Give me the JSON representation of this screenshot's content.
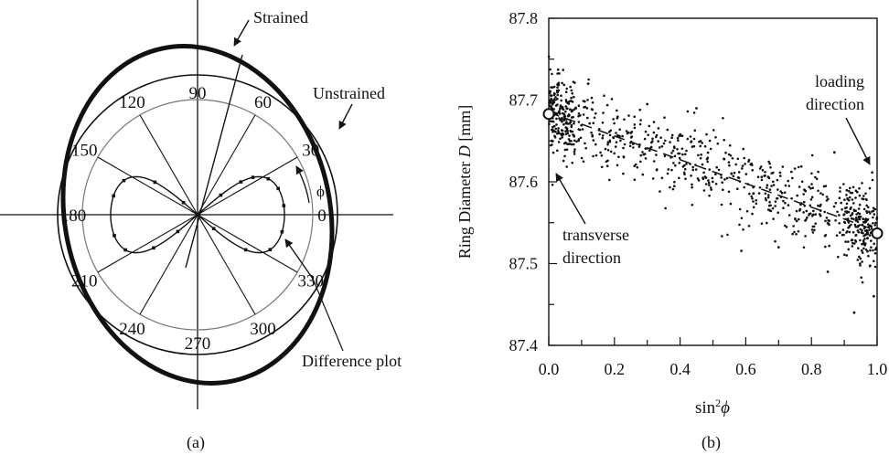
{
  "panel_a": {
    "label": "(a)",
    "angle_labels": [
      {
        "deg": 0,
        "text": "0"
      },
      {
        "deg": 30,
        "text": "30"
      },
      {
        "deg": 60,
        "text": "60"
      },
      {
        "deg": 90,
        "text": "90"
      },
      {
        "deg": 120,
        "text": "120"
      },
      {
        "deg": 150,
        "text": "150"
      },
      {
        "deg": 180,
        "text": "180"
      },
      {
        "deg": 210,
        "text": "210"
      },
      {
        "deg": 240,
        "text": "240"
      },
      {
        "deg": 270,
        "text": "270"
      },
      {
        "deg": 300,
        "text": "300"
      },
      {
        "deg": 330,
        "text": "330"
      }
    ],
    "phi_symbol": "ϕ",
    "annotations": {
      "strained": "Strained",
      "unstrained": "Unstrained",
      "difference": "Difference plot"
    }
  },
  "panel_b": {
    "label": "(b)",
    "annotations": {
      "loading_line1": "loading",
      "loading_line2": "direction",
      "transverse_line1": "transverse",
      "transverse_line2": "direction"
    }
  },
  "chart_data": {
    "type": "scatter",
    "xlabel": "sin²ϕ",
    "ylabel": "Ring Diameter D [mm]",
    "xlim": [
      0,
      1
    ],
    "ylim": [
      87.4,
      87.8
    ],
    "x_ticks": [
      "0.0",
      "0.2",
      "0.4",
      "0.6",
      "0.8",
      "1.0"
    ],
    "y_ticks": [
      "87.4",
      "87.5",
      "87.6",
      "87.7",
      "87.8"
    ],
    "trend": {
      "x": [
        0,
        1
      ],
      "y": [
        87.685,
        87.54
      ]
    },
    "highlighted_points": [
      {
        "x": 0.0,
        "y": 87.683
      },
      {
        "x": 1.0,
        "y": 87.537
      }
    ],
    "spread_mm": 0.025,
    "outliers": [
      {
        "x": 0.93,
        "y": 87.44
      },
      {
        "x": 0.85,
        "y": 87.49
      },
      {
        "x": 0.87,
        "y": 87.636
      },
      {
        "x": 0.99,
        "y": 87.46
      },
      {
        "x": 0.12,
        "y": 87.72
      },
      {
        "x": 0.3,
        "y": 87.695
      },
      {
        "x": 0.45,
        "y": 87.69
      },
      {
        "x": 0.7,
        "y": 87.52
      }
    ],
    "n_points": 900
  }
}
